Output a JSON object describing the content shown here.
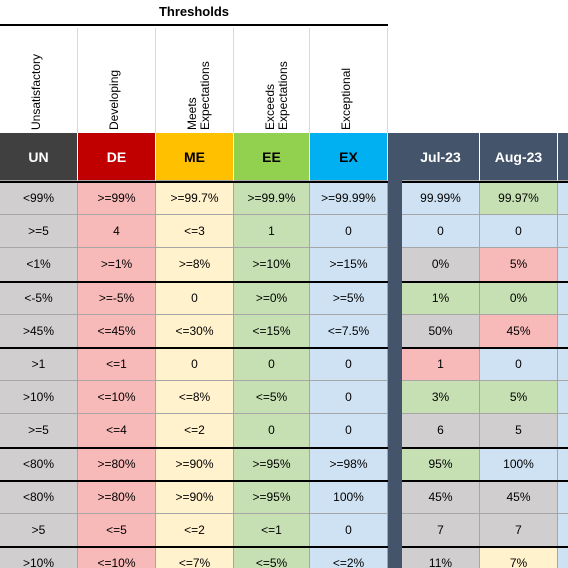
{
  "title": "Thresholds",
  "levels": [
    {
      "label": "Unsatisfactory",
      "code": "UN",
      "color": "#404040",
      "text_color": "#ffffff",
      "cell_color": "#d0cece"
    },
    {
      "label": "Developing",
      "code": "DE",
      "color": "#c00000",
      "text_color": "#ffffff",
      "cell_color": "#f8b9b9"
    },
    {
      "label": "Meets Expectations",
      "code": "ME",
      "color": "#ffc000",
      "text_color": "#000000",
      "cell_color": "#fff2cc"
    },
    {
      "label": "Exceeds Expectations",
      "code": "EE",
      "color": "#92d050",
      "text_color": "#000000",
      "cell_color": "#c6e0b4"
    },
    {
      "label": "Exceptional",
      "code": "EX",
      "color": "#00b0f0",
      "text_color": "#000000",
      "cell_color": "#cfe2f3"
    }
  ],
  "month_header_color": "#44546a",
  "months": [
    "Jul-23",
    "Aug-23"
  ],
  "rows": [
    {
      "thresholds": [
        "<99%",
        ">=99%",
        ">=99.7%",
        ">=99.9%",
        ">=99.99%"
      ],
      "months": [
        "99.99%",
        "99.97%"
      ],
      "month_colors": [
        "#cfe2f3",
        "#c6e0b4"
      ]
    },
    {
      "thresholds": [
        ">=5",
        "4",
        "<=3",
        "1",
        "0"
      ],
      "months": [
        "0",
        "0"
      ],
      "month_colors": [
        "#cfe2f3",
        "#cfe2f3"
      ]
    },
    {
      "thresholds": [
        "<1%",
        ">=1%",
        ">=8%",
        ">=10%",
        ">=15%"
      ],
      "months": [
        "0%",
        "5%"
      ],
      "month_colors": [
        "#d0cece",
        "#f8b9b9"
      ]
    },
    {
      "thresholds": [
        "<-5%",
        ">=-5%",
        "0",
        ">=0%",
        ">=5%"
      ],
      "months": [
        "1%",
        "0%"
      ],
      "month_colors": [
        "#c6e0b4",
        "#c6e0b4"
      ]
    },
    {
      "thresholds": [
        ">45%",
        "<=45%",
        "<=30%",
        "<=15%",
        "<=7.5%"
      ],
      "months": [
        "50%",
        "45%"
      ],
      "month_colors": [
        "#d0cece",
        "#f8b9b9"
      ]
    },
    {
      "thresholds": [
        ">1",
        "<=1",
        "0",
        "0",
        "0"
      ],
      "months": [
        "1",
        "0"
      ],
      "month_colors": [
        "#f8b9b9",
        "#cfe2f3"
      ]
    },
    {
      "thresholds": [
        ">10%",
        "<=10%",
        "<=8%",
        "<=5%",
        "0"
      ],
      "months": [
        "3%",
        "5%"
      ],
      "month_colors": [
        "#c6e0b4",
        "#c6e0b4"
      ]
    },
    {
      "thresholds": [
        ">=5",
        "<=4",
        "<=2",
        "0",
        "0"
      ],
      "months": [
        "6",
        "5"
      ],
      "month_colors": [
        "#d0cece",
        "#d0cece"
      ]
    },
    {
      "thresholds": [
        "<80%",
        ">=80%",
        ">=90%",
        ">=95%",
        ">=98%"
      ],
      "months": [
        "95%",
        "100%"
      ],
      "month_colors": [
        "#c6e0b4",
        "#cfe2f3"
      ]
    },
    {
      "thresholds": [
        "<80%",
        ">=80%",
        ">=90%",
        ">=95%",
        "100%"
      ],
      "months": [
        "45%",
        "45%"
      ],
      "month_colors": [
        "#d0cece",
        "#d0cece"
      ]
    },
    {
      "thresholds": [
        ">5",
        "<=5",
        "<=2",
        "<=1",
        "0"
      ],
      "months": [
        "7",
        "7"
      ],
      "month_colors": [
        "#d0cece",
        "#d0cece"
      ]
    },
    {
      "thresholds": [
        ">10%",
        "<=10%",
        "<=7%",
        "<=5%",
        "<=2%"
      ],
      "months": [
        "11%",
        "7%"
      ],
      "month_colors": [
        "#d0cece",
        "#fff2cc"
      ]
    }
  ]
}
